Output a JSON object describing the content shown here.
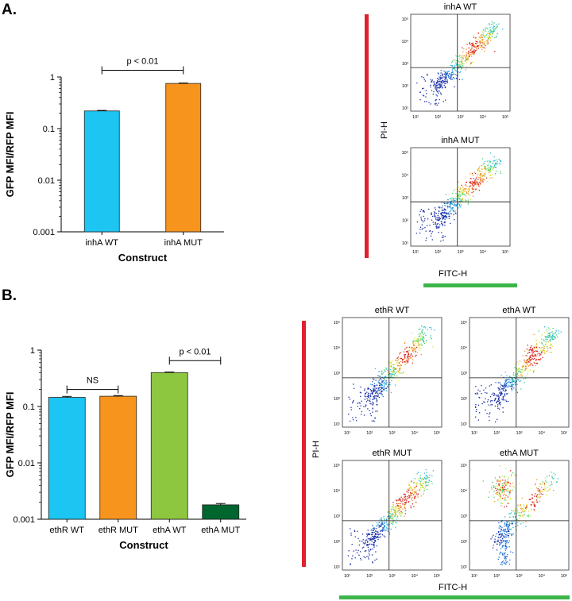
{
  "panel_a": {
    "label": "A.",
    "flow": {
      "y_label": "PI-H",
      "x_label": "FITC-H",
      "plots": [
        {
          "title": "inhA WT"
        },
        {
          "title": "inhA MUT"
        }
      ]
    }
  },
  "panel_b": {
    "label": "B.",
    "flow": {
      "y_label": "PI-H",
      "x_label": "FITC-H",
      "plots": [
        {
          "title": "ethR WT"
        },
        {
          "title": "ethA WT"
        },
        {
          "title": "ethR MUT"
        },
        {
          "title": "ethA MUT"
        }
      ]
    }
  },
  "flow_tick_labels": [
    "10¹",
    "10²",
    "10³",
    "10⁴",
    "10⁵"
  ],
  "chart_data": [
    {
      "type": "bar",
      "title": "",
      "xlabel": "Construct",
      "ylabel": "GFP MFI/RFP MFI",
      "yscale": "log",
      "ylim": [
        0.001,
        1
      ],
      "yticks": [
        {
          "value": 0.001,
          "label": "0.001"
        },
        {
          "value": 0.01,
          "label": "0.01"
        },
        {
          "value": 0.1,
          "label": "0.1"
        },
        {
          "value": 1,
          "label": "1"
        }
      ],
      "categories": [
        "inhA WT",
        "inhA MUT"
      ],
      "values": [
        0.22,
        0.75
      ],
      "errors": [
        0.005,
        0.015
      ],
      "colors": [
        "#1cc5f2",
        "#f7941d"
      ],
      "annotations": [
        {
          "from": 0,
          "to": 1,
          "text": "p < 0.01",
          "at": 1.35
        }
      ]
    },
    {
      "type": "bar",
      "title": "",
      "xlabel": "Construct",
      "ylabel": "GFP MFI/RFP MFI",
      "yscale": "log",
      "ylim": [
        0.001,
        1
      ],
      "yticks": [
        {
          "value": 0.001,
          "label": "0.001"
        },
        {
          "value": 0.01,
          "label": "0.01"
        },
        {
          "value": 0.1,
          "label": "0.1"
        },
        {
          "value": 1,
          "label": "1"
        }
      ],
      "categories": [
        "ethR WT",
        "ethR MUT",
        "ethA WT",
        "ethA MUT"
      ],
      "values": [
        0.145,
        0.152,
        0.4,
        0.0018
      ],
      "errors": [
        0.006,
        0.004,
        0.008,
        0.0001
      ],
      "colors": [
        "#1cc5f2",
        "#f7941d",
        "#8dc63f",
        "#00662f"
      ],
      "annotations": [
        {
          "from": 0,
          "to": 1,
          "text": "NS",
          "at": 0.2
        },
        {
          "from": 2,
          "to": 3,
          "text": "p < 0.01",
          "at": 0.65
        }
      ]
    }
  ],
  "colors": {
    "red_bar": "#e3202d",
    "green_bar": "#3cb54a",
    "density_low": "#1a2fa8",
    "density_high": "#d62020"
  }
}
